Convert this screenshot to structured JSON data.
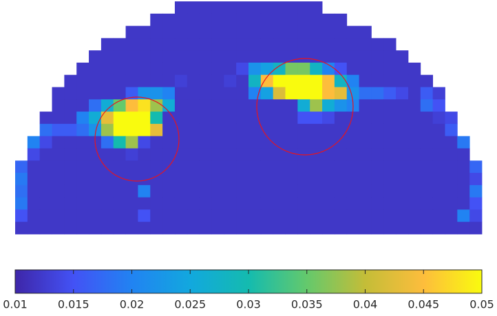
{
  "chart_data": {
    "type": "heatmap",
    "colormap": [
      "#3e26a8",
      "#4352f5",
      "#2183f2",
      "#12a8de",
      "#14bbaf",
      "#64c96c",
      "#c4bd38",
      "#fdbd3c",
      "#f9fb0e"
    ],
    "clim": [
      0.01,
      0.05
    ],
    "cticks": [
      0.01,
      0.015,
      0.02,
      0.025,
      0.03,
      0.035,
      0.04,
      0.045,
      0.05
    ],
    "z": [
      [
        null,
        null,
        null,
        null,
        null,
        null,
        null,
        null,
        null,
        null,
        null,
        null,
        null,
        0.012,
        0.012,
        0.012,
        0.012,
        0.012,
        0.012,
        0.012,
        0.012,
        0.012,
        0.012,
        0.012,
        0.012,
        null,
        null,
        null,
        null,
        null,
        null,
        null,
        null,
        null,
        null,
        null,
        null,
        null
      ],
      [
        null,
        null,
        null,
        null,
        null,
        null,
        null,
        null,
        null,
        null,
        null,
        0.012,
        0.012,
        0.012,
        0.012,
        0.012,
        0.012,
        0.012,
        0.012,
        0.012,
        0.012,
        0.012,
        0.012,
        0.012,
        0.012,
        0.012,
        0.012,
        null,
        null,
        null,
        null,
        null,
        null,
        null,
        null,
        null,
        null,
        null
      ],
      [
        null,
        null,
        null,
        null,
        null,
        null,
        null,
        null,
        null,
        0.012,
        0.012,
        0.012,
        0.012,
        0.012,
        0.012,
        0.012,
        0.012,
        0.012,
        0.012,
        0.012,
        0.012,
        0.012,
        0.012,
        0.012,
        0.012,
        0.012,
        0.012,
        0.012,
        0.012,
        null,
        null,
        null,
        null,
        null,
        null,
        null,
        null,
        null
      ],
      [
        null,
        null,
        null,
        null,
        null,
        null,
        null,
        0.012,
        0.012,
        0.012,
        0.012,
        0.012,
        0.012,
        0.012,
        0.012,
        0.012,
        0.012,
        0.012,
        0.012,
        0.012,
        0.012,
        0.012,
        0.012,
        0.012,
        0.012,
        0.012,
        0.012,
        0.012,
        0.012,
        0.012,
        0.012,
        null,
        null,
        null,
        null,
        null,
        null,
        null
      ],
      [
        null,
        null,
        null,
        null,
        null,
        null,
        0.012,
        0.012,
        0.012,
        0.012,
        0.012,
        0.012,
        0.012,
        0.012,
        0.012,
        0.012,
        0.012,
        0.012,
        0.012,
        0.012,
        0.012,
        0.012,
        0.012,
        0.012,
        0.012,
        0.012,
        0.012,
        0.012,
        0.012,
        0.012,
        0.012,
        0.012,
        null,
        null,
        null,
        null,
        null,
        null
      ],
      [
        null,
        null,
        null,
        null,
        null,
        0.012,
        0.012,
        0.012,
        0.012,
        0.012,
        0.012,
        0.012,
        0.012,
        0.012,
        0.012,
        0.012,
        0.012,
        0.012,
        0.014,
        0.022,
        0.024,
        0.028,
        0.036,
        0.036,
        0.028,
        0.02,
        0.015,
        0.012,
        0.012,
        0.012,
        0.012,
        0.012,
        0.012,
        null,
        null,
        null,
        null,
        null
      ],
      [
        null,
        null,
        null,
        null,
        0.012,
        0.012,
        0.012,
        0.012,
        0.012,
        0.012,
        0.012,
        0.012,
        0.012,
        0.013,
        0.012,
        0.012,
        0.012,
        0.013,
        0.012,
        0.028,
        0.045,
        0.05,
        0.05,
        0.05,
        0.05,
        0.045,
        0.028,
        0.02,
        0.012,
        0.012,
        0.012,
        0.012,
        0.012,
        0.012,
        null,
        null,
        null,
        null
      ],
      [
        null,
        null,
        null,
        0.012,
        0.012,
        0.012,
        0.012,
        0.012,
        0.012,
        0.016,
        0.022,
        0.022,
        0.02,
        0.012,
        0.012,
        0.012,
        0.012,
        0.012,
        0.012,
        0.02,
        0.024,
        0.042,
        0.05,
        0.05,
        0.05,
        0.045,
        0.043,
        0.022,
        0.018,
        0.018,
        0.016,
        0.014,
        0.012,
        0.016,
        0.013,
        null,
        null,
        null
      ],
      [
        null,
        null,
        null,
        0.012,
        0.012,
        0.012,
        0.018,
        0.026,
        0.035,
        0.045,
        0.048,
        0.038,
        0.026,
        0.012,
        0.012,
        0.012,
        0.012,
        0.012,
        0.012,
        0.012,
        0.012,
        0.012,
        0.012,
        0.026,
        0.038,
        0.026,
        0.022,
        0.02,
        0.012,
        0.012,
        0.012,
        0.012,
        0.012,
        0.018,
        0.015,
        null,
        null,
        null
      ],
      [
        null,
        null,
        0.012,
        0.012,
        0.012,
        0.02,
        0.026,
        0.043,
        0.05,
        0.05,
        0.05,
        0.03,
        0.012,
        0.012,
        0.012,
        0.012,
        0.012,
        0.012,
        0.012,
        0.012,
        0.012,
        0.012,
        0.012,
        0.015,
        0.015,
        0.014,
        0.012,
        0.012,
        0.012,
        0.012,
        0.012,
        0.012,
        0.012,
        0.012,
        0.013,
        0.014,
        null,
        null
      ],
      [
        null,
        null,
        0.018,
        0.016,
        0.016,
        0.018,
        0.022,
        0.038,
        0.05,
        0.05,
        0.05,
        0.043,
        0.012,
        0.012,
        0.012,
        0.012,
        0.012,
        0.012,
        0.012,
        0.012,
        0.012,
        0.012,
        0.012,
        0.012,
        0.012,
        0.012,
        0.012,
        0.012,
        0.012,
        0.012,
        0.012,
        0.012,
        0.012,
        0.012,
        0.012,
        0.016,
        null,
        null
      ],
      [
        null,
        0.02,
        0.014,
        0.012,
        0.012,
        0.012,
        0.012,
        0.018,
        0.03,
        0.038,
        0.014,
        0.012,
        0.012,
        0.012,
        0.012,
        0.012,
        0.012,
        0.012,
        0.012,
        0.012,
        0.012,
        0.012,
        0.012,
        0.012,
        0.012,
        0.012,
        0.012,
        0.012,
        0.012,
        0.012,
        0.012,
        0.012,
        0.012,
        0.012,
        0.012,
        0.012,
        0.019,
        null
      ],
      [
        null,
        0.014,
        0.012,
        0.012,
        0.012,
        0.012,
        0.012,
        0.012,
        0.012,
        0.013,
        0.012,
        0.012,
        0.012,
        0.012,
        0.012,
        0.012,
        0.012,
        0.012,
        0.012,
        0.012,
        0.012,
        0.012,
        0.012,
        0.012,
        0.012,
        0.012,
        0.012,
        0.012,
        0.012,
        0.012,
        0.012,
        0.012,
        0.012,
        0.012,
        0.012,
        0.012,
        0.012,
        null
      ],
      [
        0.017,
        0.012,
        0.012,
        0.012,
        0.012,
        0.012,
        0.012,
        0.012,
        0.012,
        0.012,
        0.012,
        0.012,
        0.012,
        0.012,
        0.012,
        0.012,
        0.012,
        0.012,
        0.012,
        0.012,
        0.012,
        0.012,
        0.012,
        0.012,
        0.012,
        0.012,
        0.012,
        0.012,
        0.012,
        0.012,
        0.012,
        0.012,
        0.012,
        0.012,
        0.012,
        0.012,
        0.012,
        0.017
      ],
      [
        0.019,
        0.012,
        0.012,
        0.012,
        0.012,
        0.012,
        0.012,
        0.012,
        0.012,
        0.012,
        0.012,
        0.012,
        0.012,
        0.012,
        0.012,
        0.012,
        0.012,
        0.012,
        0.012,
        0.012,
        0.012,
        0.012,
        0.012,
        0.012,
        0.012,
        0.012,
        0.012,
        0.012,
        0.012,
        0.012,
        0.012,
        0.012,
        0.012,
        0.012,
        0.012,
        0.012,
        0.012,
        0.014
      ],
      [
        0.018,
        0.012,
        0.012,
        0.012,
        0.012,
        0.012,
        0.012,
        0.012,
        0.012,
        0.012,
        0.02,
        0.012,
        0.012,
        0.012,
        0.012,
        0.012,
        0.012,
        0.012,
        0.012,
        0.012,
        0.012,
        0.012,
        0.012,
        0.012,
        0.012,
        0.012,
        0.012,
        0.012,
        0.012,
        0.012,
        0.012,
        0.012,
        0.012,
        0.012,
        0.012,
        0.012,
        0.012,
        0.019
      ],
      [
        0.019,
        0.012,
        0.012,
        0.012,
        0.012,
        0.012,
        0.012,
        0.012,
        0.012,
        0.012,
        0.012,
        0.012,
        0.012,
        0.012,
        0.012,
        0.012,
        0.012,
        0.012,
        0.012,
        0.012,
        0.012,
        0.012,
        0.012,
        0.012,
        0.012,
        0.012,
        0.012,
        0.012,
        0.012,
        0.012,
        0.012,
        0.012,
        0.012,
        0.012,
        0.012,
        0.012,
        0.012,
        0.015
      ],
      [
        0.015,
        0.012,
        0.012,
        0.012,
        0.012,
        0.012,
        0.012,
        0.012,
        0.012,
        0.012,
        0.015,
        0.012,
        0.012,
        0.012,
        0.012,
        0.012,
        0.012,
        0.012,
        0.012,
        0.012,
        0.012,
        0.012,
        0.012,
        0.012,
        0.012,
        0.012,
        0.012,
        0.012,
        0.012,
        0.012,
        0.012,
        0.012,
        0.012,
        0.012,
        0.012,
        0.012,
        0.02,
        0.014
      ],
      [
        0.012,
        0.012,
        0.012,
        0.012,
        0.012,
        0.012,
        0.012,
        0.012,
        0.012,
        0.012,
        0.012,
        0.012,
        0.012,
        0.012,
        0.012,
        0.012,
        0.012,
        0.012,
        0.012,
        0.012,
        0.012,
        0.012,
        0.012,
        0.012,
        0.012,
        0.012,
        0.012,
        0.012,
        0.012,
        0.012,
        0.012,
        0.012,
        0.012,
        0.012,
        0.012,
        0.012,
        0.012,
        0.012
      ]
    ]
  }
}
